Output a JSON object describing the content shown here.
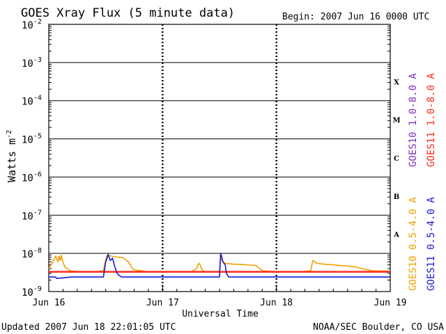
{
  "header": {
    "title": "GOES Xray Flux (5 minute data)",
    "begin_text": "Begin:  2007 Jun 16 0000 UTC"
  },
  "footer": {
    "updated": "Updated 2007 Jun 18 22:01:05 UTC",
    "credit": "NOAA/SEC Boulder, CO USA"
  },
  "chart_data": {
    "type": "line",
    "title": "GOES Xray Flux (5 minute data)",
    "xlabel": "Universal Time",
    "ylabel": "Watts m",
    "ylabel_sup": "-2",
    "y_scale": "log",
    "ylim": [
      1e-09,
      0.01
    ],
    "xlim_days": [
      0,
      3
    ],
    "x_ticks": [
      "Jun 16",
      "Jun 17",
      "Jun 18",
      "Jun 19"
    ],
    "y_ticks": [
      {
        "exp": -9,
        "base": "10",
        "sup": "-9"
      },
      {
        "exp": -8,
        "base": "10",
        "sup": "-8"
      },
      {
        "exp": -7,
        "base": "10",
        "sup": "-7"
      },
      {
        "exp": -6,
        "base": "10",
        "sup": "-6"
      },
      {
        "exp": -5,
        "base": "10",
        "sup": "-5"
      },
      {
        "exp": -4,
        "base": "10",
        "sup": "-4"
      },
      {
        "exp": -3,
        "base": "10",
        "sup": "-3"
      },
      {
        "exp": -2,
        "base": "10",
        "sup": "-2"
      }
    ],
    "flare_classes": [
      {
        "label": "A",
        "exp": -7.5
      },
      {
        "label": "B",
        "exp": -6.5
      },
      {
        "label": "C",
        "exp": -5.5
      },
      {
        "label": "M",
        "exp": -4.5
      },
      {
        "label": "X",
        "exp": -3.5
      }
    ],
    "grid": true,
    "legend_placement": "right",
    "series": [
      {
        "name": "GOES11 1.0-8.0 A",
        "color": "#ff2a1a",
        "x_days": [
          0,
          3
        ],
        "y": [
          3.3e-09,
          3.3e-09
        ]
      },
      {
        "name": "GOES10 1.0-8.0 A",
        "color": "#7b2fbe",
        "x_days": [],
        "y": []
      },
      {
        "name": "GOES10 0.5-4.0 A",
        "color": "#f0a000",
        "x_days": [
          0,
          0.03,
          0.06,
          0.08,
          0.09,
          0.1,
          0.11,
          0.12,
          0.14,
          0.16,
          0.18,
          0.22,
          0.3,
          0.4,
          0.48,
          0.5,
          0.51,
          0.52,
          0.55,
          0.6,
          0.65,
          0.7,
          0.72,
          0.74,
          0.78,
          0.82,
          0.84,
          0.86,
          1.0,
          1.25,
          1.3,
          1.31,
          1.32,
          1.33,
          1.34,
          1.36,
          1.4,
          1.5,
          1.51,
          1.52,
          1.53,
          1.55,
          1.6,
          1.62,
          1.65,
          1.7,
          1.75,
          1.82,
          1.88,
          2.0,
          2.2,
          2.3,
          2.32,
          2.34,
          2.35,
          2.4,
          2.5,
          2.6,
          2.7,
          2.75,
          2.8,
          2.85,
          3.0
        ],
        "y": [
          4e-09,
          5.5e-09,
          8.5e-09,
          6e-09,
          8.5e-09,
          6.5e-09,
          9e-09,
          6.5e-09,
          4.5e-09,
          4e-09,
          3.6e-09,
          3.4e-09,
          3.3e-09,
          3.3e-09,
          3.5e-09,
          7e-09,
          8.5e-09,
          9e-09,
          8.5e-09,
          8e-09,
          7.8e-09,
          6e-09,
          4.8e-09,
          3.8e-09,
          3.6e-09,
          3.5e-09,
          3.4e-09,
          3.3e-09,
          3.3e-09,
          3.3e-09,
          4e-09,
          5e-09,
          5.5e-09,
          5e-09,
          4e-09,
          3.4e-09,
          3.3e-09,
          3.4e-09,
          8e-09,
          6.5e-09,
          6e-09,
          5.5e-09,
          5.3e-09,
          5.2e-09,
          5.2e-09,
          5.1e-09,
          5e-09,
          4.8e-09,
          3.5e-09,
          3.3e-09,
          3.3e-09,
          3.5e-09,
          6.5e-09,
          6e-09,
          5.5e-09,
          5.3e-09,
          5e-09,
          4.7e-09,
          4.4e-09,
          4e-09,
          3.7e-09,
          3.5e-09,
          3.4e-09
        ]
      },
      {
        "name": "GOES11 0.5-4.0 A",
        "color": "#1a1ad6",
        "x_days": [
          0,
          0.06,
          0.07,
          0.2,
          0.48,
          0.5,
          0.51,
          0.52,
          0.53,
          0.54,
          0.56,
          0.58,
          0.6,
          0.62,
          0.64,
          1.0,
          1.5,
          1.51,
          1.52,
          1.53,
          1.55,
          1.56,
          1.58,
          1.6,
          2.0,
          2.3,
          3.0
        ],
        "y": [
          2.4e-09,
          2.4e-09,
          2.2e-09,
          2.4e-09,
          2.4e-09,
          6e-09,
          7e-09,
          9.5e-09,
          8e-09,
          6.5e-09,
          7.5e-09,
          4.5e-09,
          3e-09,
          2.6e-09,
          2.4e-09,
          2.4e-09,
          2.4e-09,
          1e-08,
          8e-09,
          6e-09,
          5e-09,
          3e-09,
          2.4e-09,
          2.4e-09,
          2.4e-09,
          2.4e-09,
          2.4e-09
        ]
      }
    ]
  }
}
